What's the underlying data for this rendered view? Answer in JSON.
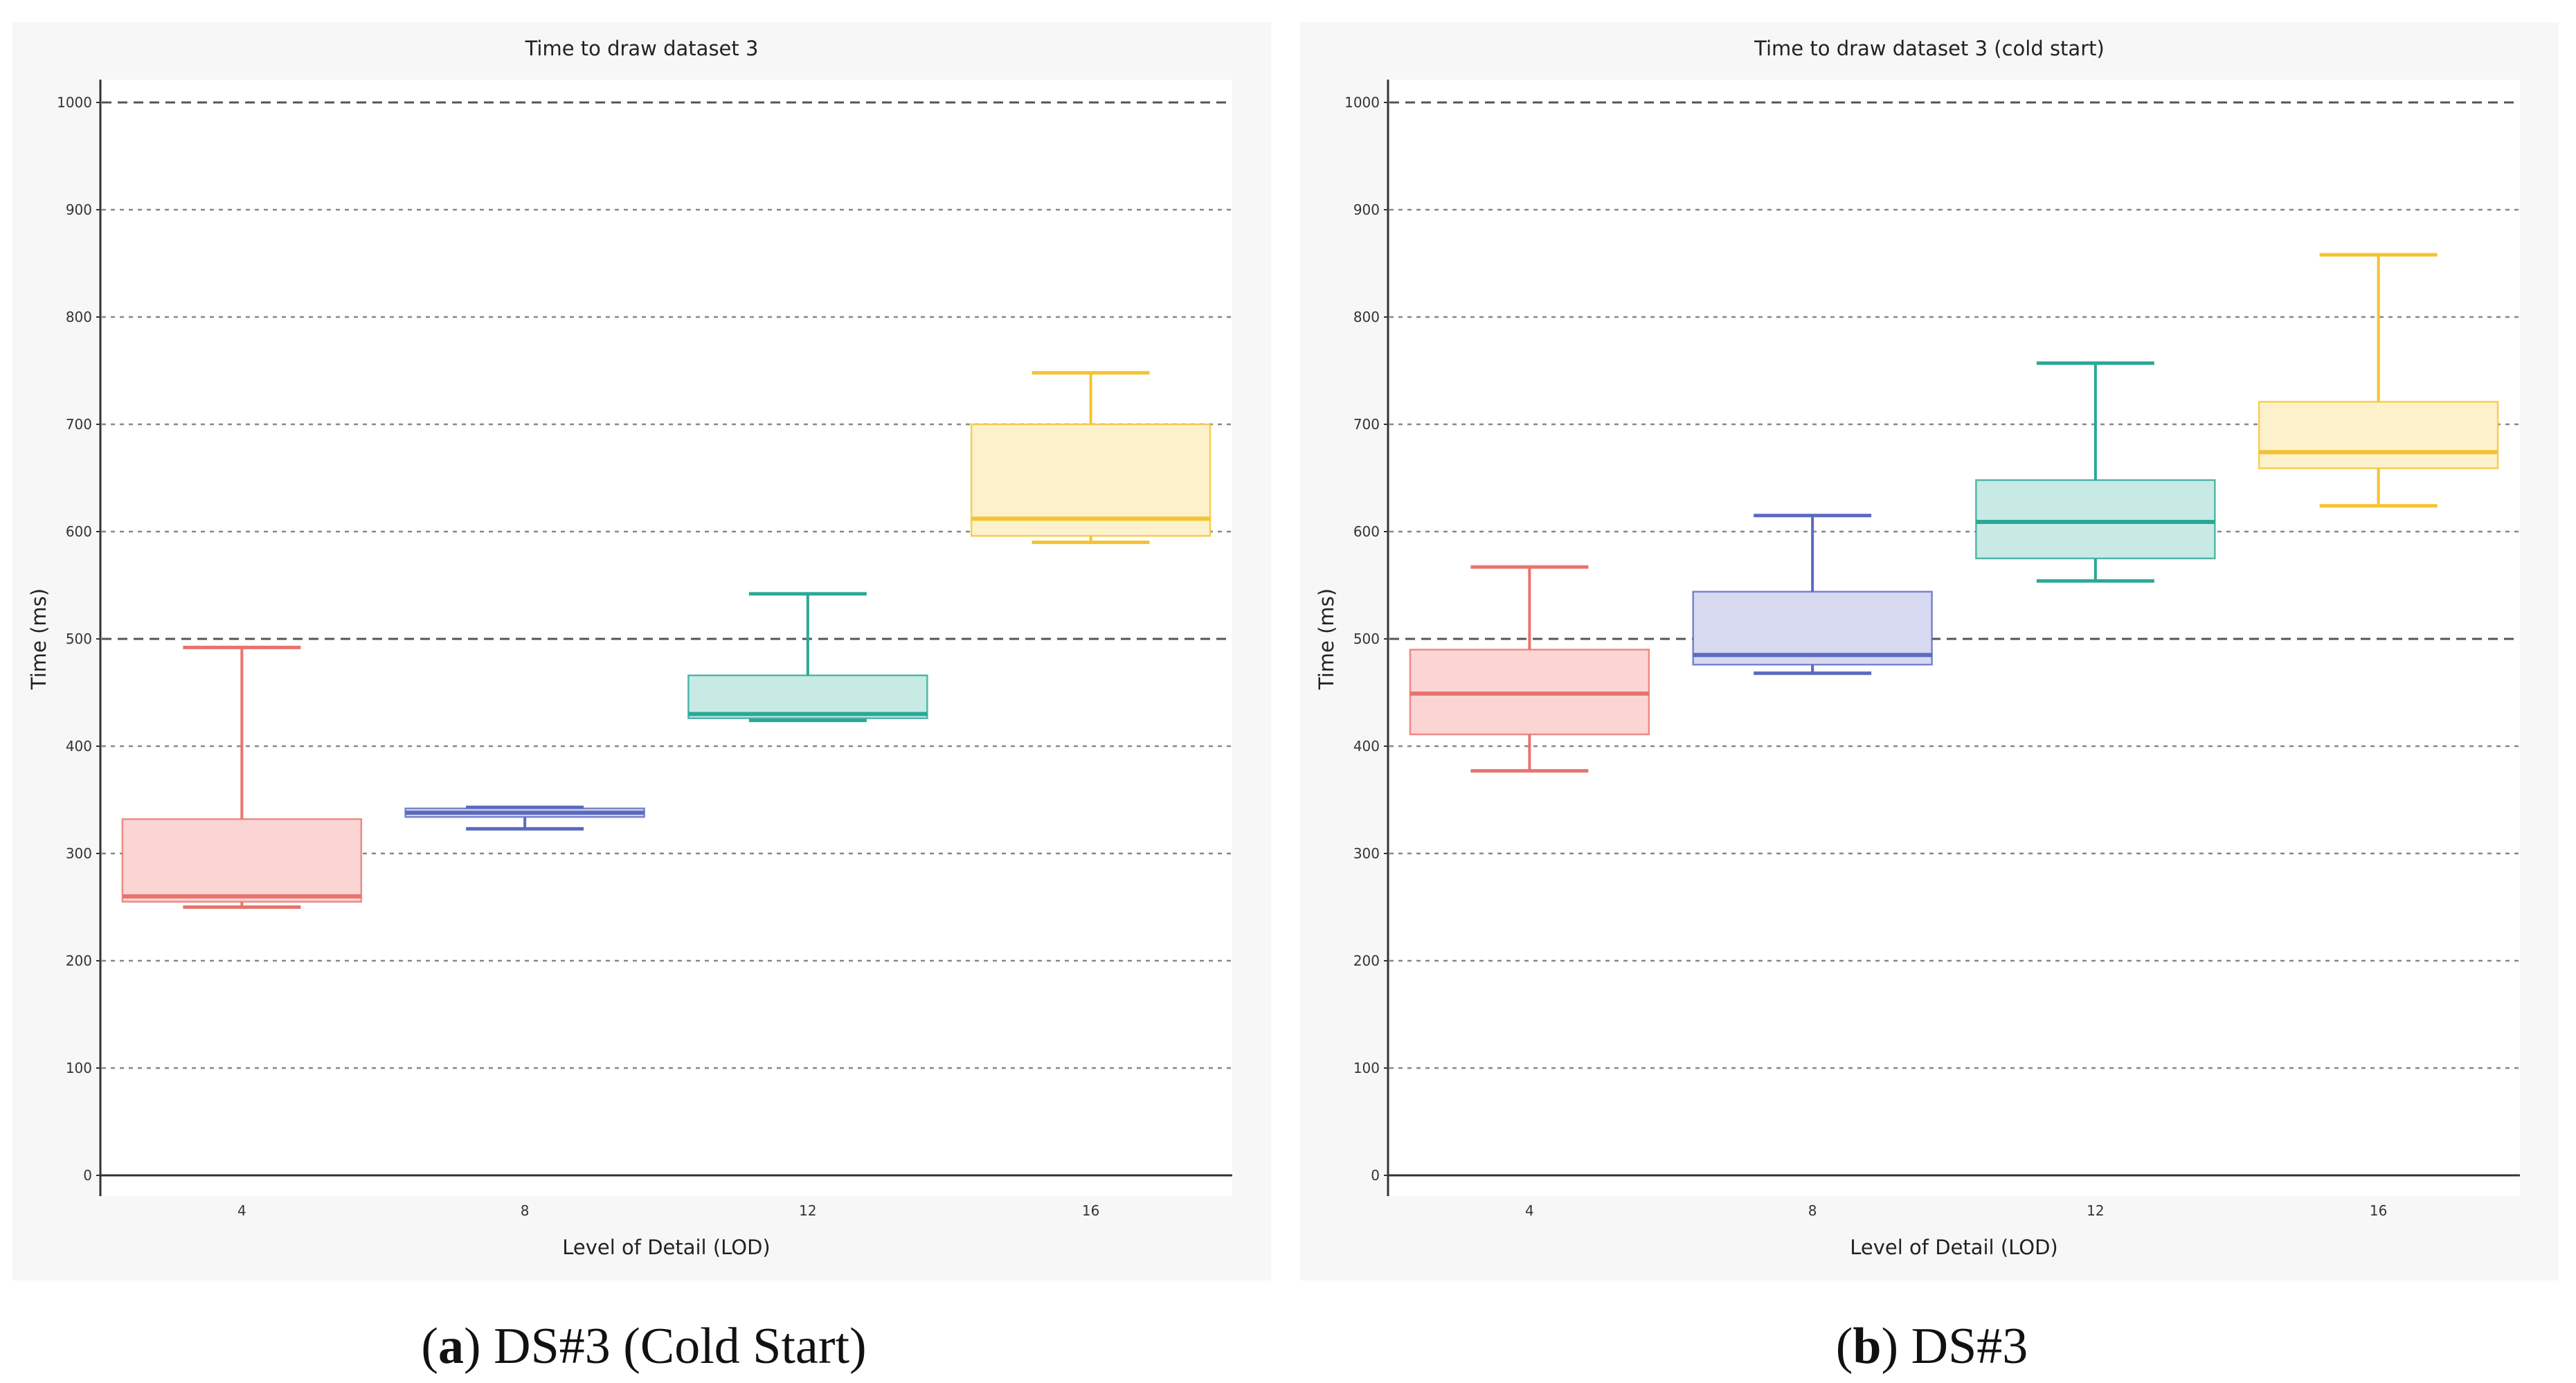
{
  "chart_data": [
    {
      "type": "box",
      "title": "Time to draw dataset 3",
      "xlabel": "Level of Detail (LOD)",
      "ylabel": "Time (ms)",
      "ylim": [
        0,
        1000
      ],
      "yticks": [
        0,
        100,
        200,
        300,
        400,
        500,
        600,
        700,
        800,
        900,
        1000
      ],
      "categories": [
        "4",
        "8",
        "12",
        "16"
      ],
      "boxes": [
        {
          "category": "4",
          "whislo": 250,
          "q1": 255,
          "median": 260,
          "q3": 332,
          "whishi": 492,
          "color": "#e8736d",
          "fill": "#fbd5d3"
        },
        {
          "category": "8",
          "whislo": 323,
          "q1": 334,
          "median": 338,
          "q3": 342,
          "whishi": 343,
          "color": "#5b6ac0",
          "fill": "#d6d9f0"
        },
        {
          "category": "12",
          "whislo": 424,
          "q1": 426,
          "median": 430,
          "q3": 466,
          "whishi": 542,
          "color": "#2aa897",
          "fill": "#c8eae5"
        },
        {
          "category": "16",
          "whislo": 590,
          "q1": 596,
          "median": 612,
          "q3": 700,
          "whishi": 748,
          "color": "#f5c330",
          "fill": "#fdf1cc"
        }
      ],
      "caption": {
        "label": "a",
        "text": "DS#3 (Cold Start)"
      }
    },
    {
      "type": "box",
      "title": "Time to draw dataset 3 (cold start)",
      "xlabel": "Level of Detail (LOD)",
      "ylabel": "Time (ms)",
      "ylim": [
        0,
        1000
      ],
      "yticks": [
        0,
        100,
        200,
        300,
        400,
        500,
        600,
        700,
        800,
        900,
        1000
      ],
      "categories": [
        "4",
        "8",
        "12",
        "16"
      ],
      "boxes": [
        {
          "category": "4",
          "whislo": 377,
          "q1": 411,
          "median": 449,
          "q3": 490,
          "whishi": 567,
          "color": "#e8736d",
          "fill": "#fbd5d3"
        },
        {
          "category": "8",
          "whislo": 468,
          "q1": 476,
          "median": 485,
          "q3": 544,
          "whishi": 615,
          "color": "#5b6ac0",
          "fill": "#d6d9f0"
        },
        {
          "category": "12",
          "whislo": 554,
          "q1": 575,
          "median": 609,
          "q3": 648,
          "whishi": 757,
          "color": "#2aa897",
          "fill": "#c8eae5"
        },
        {
          "category": "16",
          "whislo": 624,
          "q1": 659,
          "median": 674,
          "q3": 721,
          "whishi": 858,
          "color": "#f5c330",
          "fill": "#fdf1cc"
        }
      ],
      "caption": {
        "label": "b",
        "text": "DS#3"
      }
    }
  ]
}
